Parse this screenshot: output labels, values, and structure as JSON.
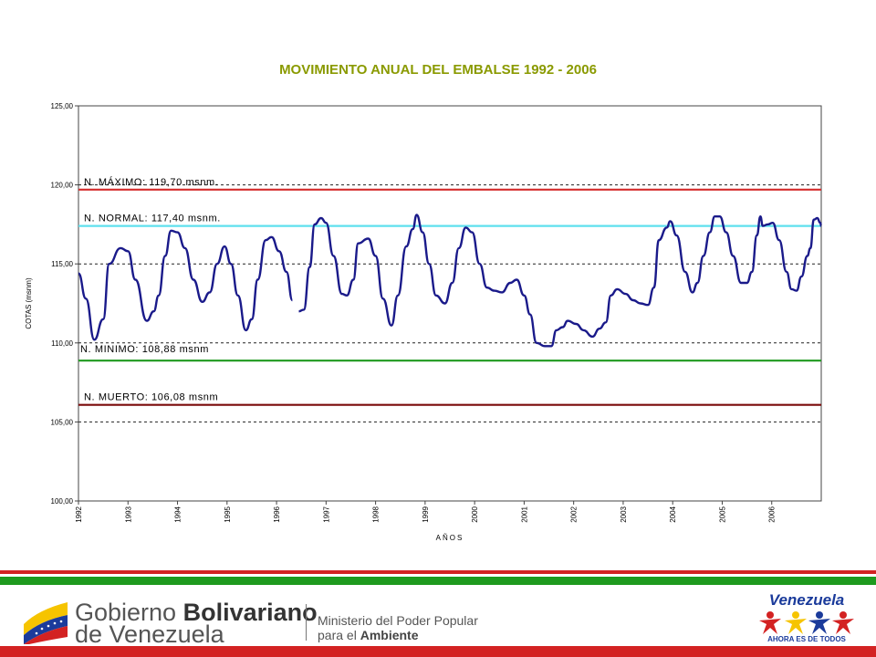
{
  "chart_data": {
    "type": "line",
    "title": "MOVIMIENTO ANUAL DEL EMBALSE 1992 - 2006",
    "xlabel": "AÑOS",
    "ylabel": "COTAS (msnm)",
    "ylim": [
      100,
      125
    ],
    "xlim": [
      1992,
      2007
    ],
    "yticks": [
      "100,00",
      "105,00",
      "110,00",
      "115,00",
      "120,00",
      "125,00"
    ],
    "xticks": [
      "1992",
      "1993",
      "1994",
      "1995",
      "1996",
      "1997",
      "1998",
      "1999",
      "2000",
      "2001",
      "2002",
      "2003",
      "2004",
      "2005",
      "2006"
    ],
    "grid": "horizontal-dashed",
    "reference_lines": [
      {
        "label": "N. MÁXIMO: 119,70 msnm.",
        "value": 119.7,
        "color": "#d42b2b"
      },
      {
        "label": "N. NORMAL: 117,40 msnm.",
        "value": 117.4,
        "color": "#5fe0ee"
      },
      {
        "label": "N. MINIMO: 108,88 msnm",
        "value": 108.88,
        "color": "#1e9a1e"
      },
      {
        "label": "N. MUERTO: 106,08 msnm",
        "value": 106.08,
        "color": "#7a0a0a"
      }
    ],
    "series": [
      {
        "color": "#1a1a8a",
        "segments": [
          [
            [
              1992.0,
              114.4
            ],
            [
              1992.15,
              112.8
            ],
            [
              1992.32,
              110.2
            ],
            [
              1992.5,
              111.5
            ],
            [
              1992.62,
              115.0
            ],
            [
              1992.85,
              116.0
            ],
            [
              1993.0,
              115.8
            ],
            [
              1993.15,
              114.0
            ],
            [
              1993.38,
              111.4
            ],
            [
              1993.52,
              112.0
            ],
            [
              1993.62,
              113.0
            ],
            [
              1993.75,
              115.5
            ],
            [
              1993.87,
              117.1
            ],
            [
              1994.0,
              117.0
            ],
            [
              1994.15,
              116.0
            ],
            [
              1994.32,
              114.0
            ],
            [
              1994.5,
              112.6
            ],
            [
              1994.65,
              113.2
            ],
            [
              1994.8,
              115.0
            ],
            [
              1994.95,
              116.1
            ],
            [
              1995.08,
              115.0
            ],
            [
              1995.22,
              113.0
            ],
            [
              1995.38,
              110.8
            ],
            [
              1995.5,
              111.5
            ],
            [
              1995.62,
              114.0
            ],
            [
              1995.78,
              116.5
            ],
            [
              1995.9,
              116.7
            ],
            [
              1996.05,
              115.8
            ],
            [
              1996.2,
              114.5
            ],
            [
              1996.32,
              112.7
            ]
          ],
          [
            [
              1996.45,
              112.0
            ],
            [
              1996.55,
              112.1
            ],
            [
              1996.67,
              114.8
            ],
            [
              1996.77,
              117.5
            ],
            [
              1996.9,
              117.9
            ],
            [
              1997.0,
              117.6
            ],
            [
              1997.15,
              115.5
            ],
            [
              1997.32,
              113.1
            ],
            [
              1997.42,
              113.0
            ],
            [
              1997.55,
              114.0
            ],
            [
              1997.65,
              116.3
            ],
            [
              1997.85,
              116.6
            ],
            [
              1998.0,
              115.5
            ],
            [
              1998.15,
              112.8
            ],
            [
              1998.32,
              111.1
            ],
            [
              1998.45,
              113.0
            ],
            [
              1998.62,
              116.1
            ],
            [
              1998.75,
              117.2
            ],
            [
              1998.83,
              118.1
            ],
            [
              1998.95,
              117.0
            ],
            [
              1999.08,
              115.0
            ],
            [
              1999.22,
              113.0
            ],
            [
              1999.4,
              112.5
            ],
            [
              1999.55,
              113.8
            ],
            [
              1999.68,
              116.0
            ],
            [
              1999.82,
              117.3
            ],
            [
              1999.95,
              117.0
            ],
            [
              2000.1,
              115.0
            ],
            [
              2000.25,
              113.5
            ],
            [
              2000.4,
              113.3
            ],
            [
              2000.55,
              113.2
            ],
            [
              2000.72,
              113.8
            ],
            [
              2000.85,
              114.0
            ],
            [
              2001.0,
              113.0
            ],
            [
              2001.12,
              111.8
            ],
            [
              2001.25,
              110.0
            ],
            [
              2001.42,
              109.8
            ],
            [
              2001.55,
              109.8
            ],
            [
              2001.65,
              110.8
            ],
            [
              2001.78,
              111.0
            ],
            [
              2001.88,
              111.4
            ],
            [
              2002.05,
              111.2
            ],
            [
              2002.2,
              110.8
            ],
            [
              2002.38,
              110.4
            ],
            [
              2002.52,
              110.9
            ],
            [
              2002.65,
              111.3
            ],
            [
              2002.75,
              113.0
            ],
            [
              2002.88,
              113.4
            ],
            [
              2003.05,
              113.1
            ],
            [
              2003.2,
              112.7
            ],
            [
              2003.35,
              112.5
            ],
            [
              2003.5,
              112.4
            ],
            [
              2003.62,
              113.5
            ],
            [
              2003.72,
              116.5
            ],
            [
              2003.88,
              117.3
            ],
            [
              2003.95,
              117.7
            ],
            [
              2004.08,
              116.8
            ],
            [
              2004.25,
              114.5
            ],
            [
              2004.4,
              113.2
            ],
            [
              2004.5,
              113.8
            ],
            [
              2004.62,
              115.5
            ],
            [
              2004.75,
              117.0
            ],
            [
              2004.85,
              118.0
            ],
            [
              2004.95,
              118.0
            ],
            [
              2005.08,
              117.0
            ],
            [
              2005.22,
              115.5
            ],
            [
              2005.38,
              113.8
            ],
            [
              2005.5,
              113.8
            ],
            [
              2005.6,
              114.5
            ],
            [
              2005.7,
              116.8
            ],
            [
              2005.77,
              118.0
            ],
            [
              2005.82,
              117.4
            ],
            [
              2005.92,
              117.5
            ],
            [
              2006.02,
              117.6
            ],
            [
              2006.15,
              116.5
            ],
            [
              2006.3,
              114.5
            ],
            [
              2006.4,
              113.4
            ],
            [
              2006.5,
              113.3
            ],
            [
              2006.6,
              114.2
            ],
            [
              2006.72,
              115.5
            ],
            [
              2006.78,
              116.0
            ],
            [
              2006.85,
              117.8
            ],
            [
              2006.92,
              117.9
            ],
            [
              2006.98,
              117.6
            ],
            [
              2007.0,
              117.4
            ]
          ]
        ]
      }
    ]
  },
  "footer": {
    "gov_line1_a": "Gobierno ",
    "gov_line1_b": "Bolivariano",
    "gov_line2": "de Venezuela",
    "ministry_line1": "Ministerio del Poder Popular",
    "ministry_line2_a": "para el ",
    "ministry_line2_b": "Ambiente",
    "venezuela_word": "Venezuela",
    "venezuela_slogan": "AHORA ES DE TODOS"
  },
  "colors": {
    "title": "#8a9a00",
    "series": "#1a1a8a",
    "stripe_red": "#d32222",
    "stripe_green": "#1e9a1e"
  }
}
